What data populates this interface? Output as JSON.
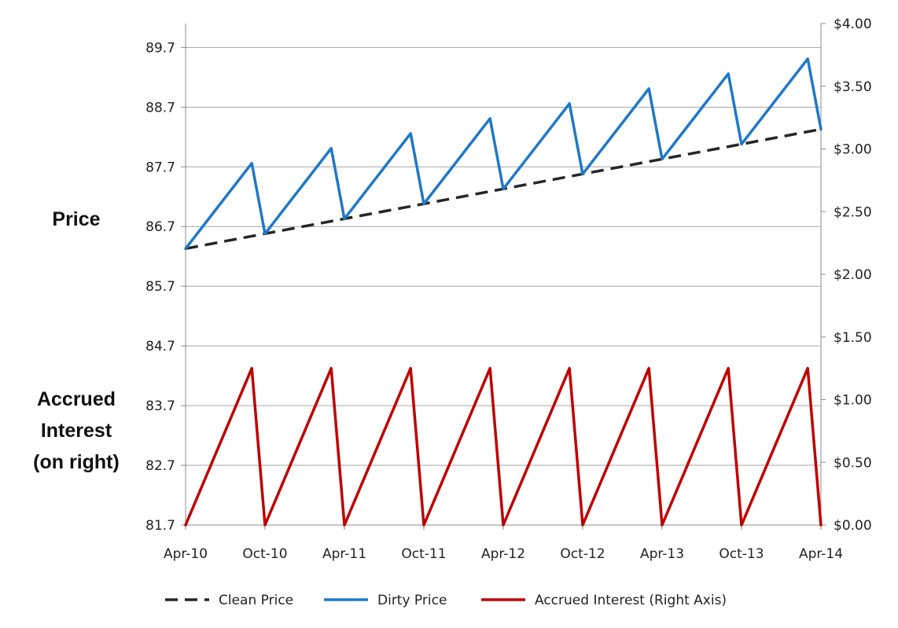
{
  "chart_data": {
    "type": "line",
    "title": "",
    "x_ticks": [
      "Apr-10",
      "Oct-10",
      "Apr-11",
      "Oct-11",
      "Apr-12",
      "Oct-12",
      "Apr-13",
      "Oct-13",
      "Apr-14"
    ],
    "left_axis": {
      "labels": [
        "Price"
      ],
      "ylim": [
        81.7,
        90.1
      ],
      "ticks": [
        "81.7",
        "82.7",
        "83.7",
        "84.7",
        "85.7",
        "86.7",
        "87.7",
        "88.7",
        "89.7"
      ]
    },
    "right_axis": {
      "labels": [
        "Accrued",
        "Interest",
        "(on right)"
      ],
      "ylim": [
        0,
        4
      ],
      "ticks": [
        "$0.00",
        "$0.50",
        "$1.00",
        "$1.50",
        "$2.00",
        "$2.50",
        "$3.00",
        "$3.50",
        "$4.00"
      ]
    },
    "grid": true,
    "legend_position": "bottom",
    "x_unit": "months since Apr-10",
    "xlim": [
      0,
      48
    ],
    "series": [
      {
        "name": "Clean Price",
        "axis": "left",
        "style": "dashed",
        "color": "#262626",
        "x": [
          0,
          48
        ],
        "y": [
          86.33,
          88.33
        ]
      },
      {
        "name": "Dirty Price",
        "axis": "left",
        "style": "solid",
        "color": "#1f78c8",
        "x": [
          0,
          5,
          6,
          11,
          12,
          17,
          18,
          23,
          24,
          29,
          30,
          35,
          36,
          41,
          42,
          47,
          48
        ],
        "y": [
          86.33,
          87.76,
          86.58,
          88.01,
          86.83,
          88.26,
          87.08,
          88.51,
          87.33,
          88.76,
          87.58,
          89.01,
          87.83,
          89.26,
          88.08,
          89.51,
          88.33
        ]
      },
      {
        "name": "Accrued Interest (Right Axis)",
        "axis": "right",
        "style": "solid",
        "color": "#c00000",
        "x": [
          0,
          5,
          6,
          11,
          12,
          17,
          18,
          23,
          24,
          29,
          30,
          35,
          36,
          41,
          42,
          47,
          48
        ],
        "y": [
          0,
          1.25,
          0,
          1.25,
          0,
          1.25,
          0,
          1.25,
          0,
          1.25,
          0,
          1.25,
          0,
          1.25,
          0,
          1.25,
          0
        ]
      }
    ]
  }
}
